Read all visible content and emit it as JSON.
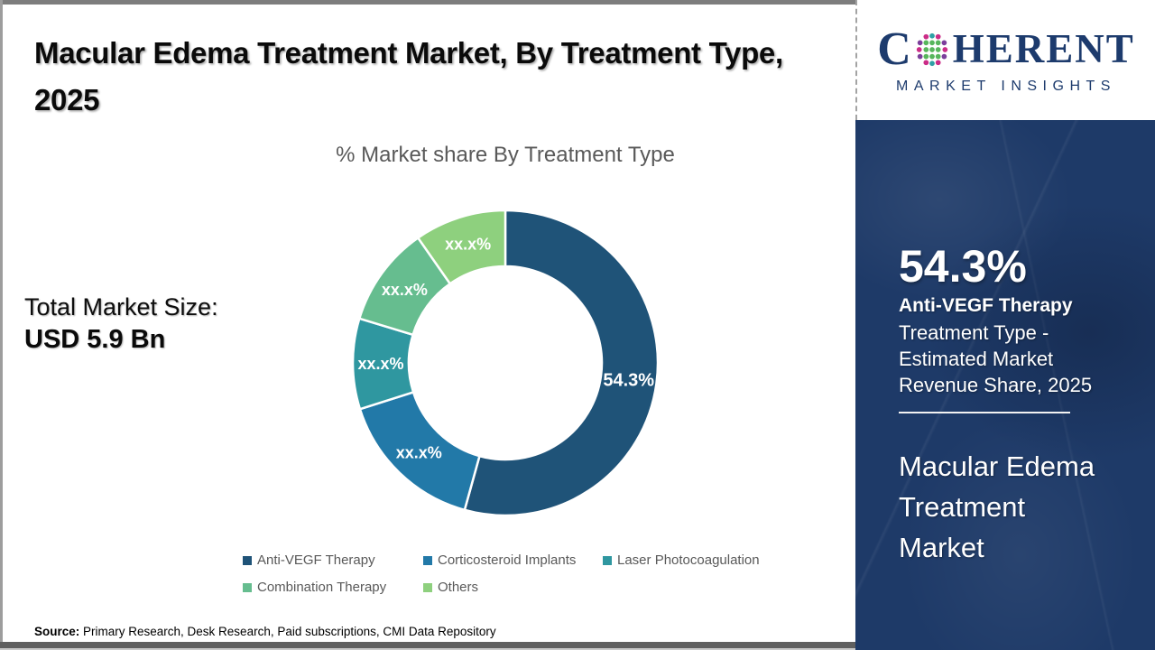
{
  "page": {
    "title": "Macular Edema Treatment Market, By Treatment Type, 2025",
    "source_label": "Source:",
    "source_text": " Primary Research, Desk Research, Paid subscriptions, CMI Data Repository"
  },
  "stats": {
    "total_label": "Total Market Size:",
    "total_value": "USD 5.9 Bn"
  },
  "chart_data": {
    "type": "pie",
    "subtype": "donut",
    "title": "% Market share By Treatment Type",
    "categories": [
      "Anti-VEGF Therapy",
      "Corticosteroid Implants",
      "Laser Photocoagulation",
      "Combination Therapy",
      "Others"
    ],
    "values": [
      54.3,
      15.8,
      9.6,
      10.6,
      9.7
    ],
    "value_labels": [
      "54.3%",
      "xx.x%",
      "xx.x%",
      "xx.x%",
      "xx.x%"
    ],
    "colors": [
      "#1f5378",
      "#2279a8",
      "#2f97a0",
      "#66bd8f",
      "#8ed07e"
    ],
    "legend_position": "bottom",
    "start_angle_deg": 0,
    "label_color": "#ffffff"
  },
  "sidebar": {
    "headline_value": "54.3%",
    "headline_label": "Anti-VEGF Therapy",
    "headline_desc": "Treatment Type - Estimated Market Revenue Share, 2025",
    "market_name": "Macular Edema Treatment Market",
    "bg_color": "#1e3a68"
  },
  "logo": {
    "part1": "C",
    "part2": "HERENT",
    "subtitle": "MARKET INSIGHTS",
    "brand_color": "#1d3b6d",
    "globe_icon": "dotted-globe"
  }
}
